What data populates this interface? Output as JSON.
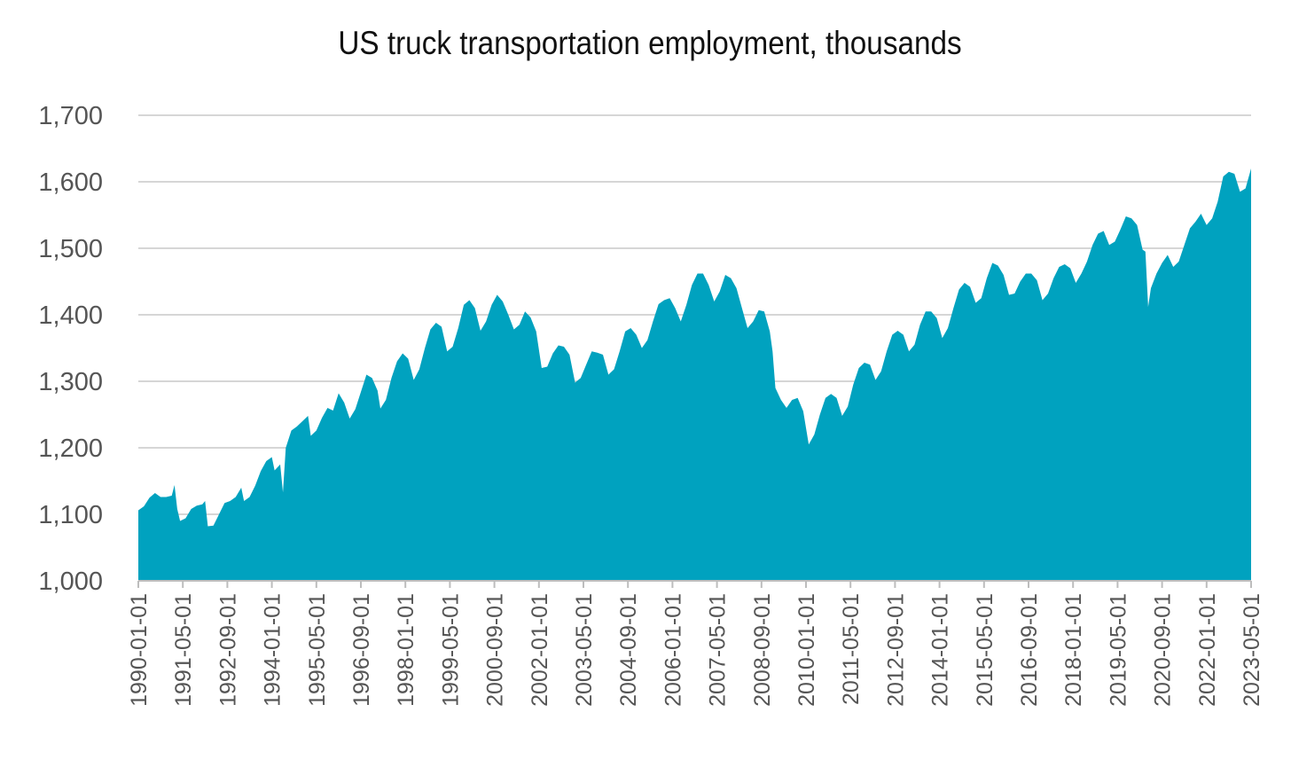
{
  "chart_data": {
    "type": "area",
    "title": "US truck transportation employment, thousands",
    "xlabel": "",
    "ylabel": "",
    "ylim": [
      1000,
      1700
    ],
    "yticks": [
      1000,
      1100,
      1200,
      1300,
      1400,
      1500,
      1600,
      1700
    ],
    "ytick_labels": [
      "1,000",
      "1,100",
      "1,200",
      "1,300",
      "1,400",
      "1,500",
      "1,600",
      "1,700"
    ],
    "xlim": [
      "1990-01-01",
      "2023-05-01"
    ],
    "xtick_labels": [
      "1990-01-01",
      "1991-05-01",
      "1992-09-01",
      "1994-01-01",
      "1995-05-01",
      "1996-09-01",
      "1998-01-01",
      "1999-05-01",
      "2000-09-01",
      "2002-01-01",
      "2003-05-01",
      "2004-09-01",
      "2006-01-01",
      "2007-05-01",
      "2008-09-01",
      "2010-01-01",
      "2011-05-01",
      "2012-09-01",
      "2014-01-01",
      "2015-05-01",
      "2016-09-01",
      "2018-01-01",
      "2019-05-01",
      "2020-09-01",
      "2022-01-01",
      "2023-05-01"
    ],
    "grid": true,
    "color": "#00a2bf",
    "series": [
      {
        "name": "US truck transportation employment",
        "points": [
          [
            "1990-01-01",
            1106
          ],
          [
            "1990-03-01",
            1112
          ],
          [
            "1990-05-01",
            1125
          ],
          [
            "1990-07-01",
            1132
          ],
          [
            "1990-09-01",
            1126
          ],
          [
            "1990-11-01",
            1126
          ],
          [
            "1991-01-01",
            1128
          ],
          [
            "1991-02-01",
            1144
          ],
          [
            "1991-03-01",
            1108
          ],
          [
            "1991-04-01",
            1090
          ],
          [
            "1991-06-01",
            1094
          ],
          [
            "1991-08-01",
            1108
          ],
          [
            "1991-10-01",
            1113
          ],
          [
            "1991-12-01",
            1115
          ],
          [
            "1992-01-01",
            1120
          ],
          [
            "1992-02-01",
            1082
          ],
          [
            "1992-04-01",
            1083
          ],
          [
            "1992-06-01",
            1100
          ],
          [
            "1992-08-01",
            1117
          ],
          [
            "1992-10-01",
            1120
          ],
          [
            "1992-12-01",
            1126
          ],
          [
            "1993-02-01",
            1140
          ],
          [
            "1993-03-01",
            1120
          ],
          [
            "1993-05-01",
            1126
          ],
          [
            "1993-07-01",
            1143
          ],
          [
            "1993-09-01",
            1165
          ],
          [
            "1993-11-01",
            1180
          ],
          [
            "1994-01-01",
            1186
          ],
          [
            "1994-02-01",
            1166
          ],
          [
            "1994-04-01",
            1175
          ],
          [
            "1994-05-01",
            1133
          ],
          [
            "1994-06-01",
            1200
          ],
          [
            "1994-08-01",
            1226
          ],
          [
            "1994-10-01",
            1232
          ],
          [
            "1994-12-01",
            1240
          ],
          [
            "1995-02-01",
            1248
          ],
          [
            "1995-03-01",
            1218
          ],
          [
            "1995-05-01",
            1226
          ],
          [
            "1995-07-01",
            1245
          ],
          [
            "1995-09-01",
            1260
          ],
          [
            "1995-11-01",
            1256
          ],
          [
            "1996-01-01",
            1282
          ],
          [
            "1996-03-01",
            1268
          ],
          [
            "1996-05-01",
            1244
          ],
          [
            "1996-07-01",
            1258
          ],
          [
            "1996-09-01",
            1284
          ],
          [
            "1996-11-01",
            1310
          ],
          [
            "1997-01-01",
            1305
          ],
          [
            "1997-03-01",
            1286
          ],
          [
            "1997-04-01",
            1259
          ],
          [
            "1997-06-01",
            1272
          ],
          [
            "1997-08-01",
            1305
          ],
          [
            "1997-10-01",
            1330
          ],
          [
            "1997-12-01",
            1342
          ],
          [
            "1998-02-01",
            1334
          ],
          [
            "1998-04-01",
            1302
          ],
          [
            "1998-06-01",
            1318
          ],
          [
            "1998-08-01",
            1350
          ],
          [
            "1998-10-01",
            1378
          ],
          [
            "1998-12-01",
            1388
          ],
          [
            "1999-02-01",
            1382
          ],
          [
            "1999-04-01",
            1345
          ],
          [
            "1999-06-01",
            1352
          ],
          [
            "1999-08-01",
            1380
          ],
          [
            "1999-10-01",
            1415
          ],
          [
            "1999-12-01",
            1422
          ],
          [
            "2000-02-01",
            1410
          ],
          [
            "2000-04-01",
            1376
          ],
          [
            "2000-06-01",
            1390
          ],
          [
            "2000-08-01",
            1415
          ],
          [
            "2000-10-01",
            1430
          ],
          [
            "2000-12-01",
            1420
          ],
          [
            "2001-02-01",
            1400
          ],
          [
            "2001-04-01",
            1378
          ],
          [
            "2001-06-01",
            1385
          ],
          [
            "2001-08-01",
            1405
          ],
          [
            "2001-10-01",
            1396
          ],
          [
            "2001-12-01",
            1375
          ],
          [
            "2002-02-01",
            1320
          ],
          [
            "2002-04-01",
            1322
          ],
          [
            "2002-06-01",
            1342
          ],
          [
            "2002-08-01",
            1354
          ],
          [
            "2002-10-01",
            1352
          ],
          [
            "2002-12-01",
            1340
          ],
          [
            "2003-02-01",
            1298
          ],
          [
            "2003-04-01",
            1305
          ],
          [
            "2003-06-01",
            1325
          ],
          [
            "2003-08-01",
            1345
          ],
          [
            "2003-10-01",
            1343
          ],
          [
            "2003-12-01",
            1340
          ],
          [
            "2004-02-01",
            1310
          ],
          [
            "2004-04-01",
            1318
          ],
          [
            "2004-06-01",
            1345
          ],
          [
            "2004-08-01",
            1375
          ],
          [
            "2004-10-01",
            1380
          ],
          [
            "2004-12-01",
            1370
          ],
          [
            "2005-02-01",
            1350
          ],
          [
            "2005-04-01",
            1362
          ],
          [
            "2005-06-01",
            1390
          ],
          [
            "2005-08-01",
            1416
          ],
          [
            "2005-10-01",
            1422
          ],
          [
            "2005-12-01",
            1425
          ],
          [
            "2006-02-01",
            1410
          ],
          [
            "2006-04-01",
            1390
          ],
          [
            "2006-06-01",
            1415
          ],
          [
            "2006-08-01",
            1445
          ],
          [
            "2006-10-01",
            1462
          ],
          [
            "2006-12-01",
            1462
          ],
          [
            "2007-02-01",
            1445
          ],
          [
            "2007-04-01",
            1420
          ],
          [
            "2007-06-01",
            1435
          ],
          [
            "2007-08-01",
            1460
          ],
          [
            "2007-10-01",
            1455
          ],
          [
            "2007-12-01",
            1440
          ],
          [
            "2008-02-01",
            1410
          ],
          [
            "2008-04-01",
            1380
          ],
          [
            "2008-06-01",
            1390
          ],
          [
            "2008-08-01",
            1407
          ],
          [
            "2008-10-01",
            1405
          ],
          [
            "2008-12-01",
            1375
          ],
          [
            "2009-01-01",
            1345
          ],
          [
            "2009-02-01",
            1290
          ],
          [
            "2009-04-01",
            1272
          ],
          [
            "2009-06-01",
            1260
          ],
          [
            "2009-08-01",
            1272
          ],
          [
            "2009-10-01",
            1275
          ],
          [
            "2009-12-01",
            1255
          ],
          [
            "2010-02-01",
            1205
          ],
          [
            "2010-04-01",
            1220
          ],
          [
            "2010-06-01",
            1250
          ],
          [
            "2010-08-01",
            1275
          ],
          [
            "2010-10-01",
            1281
          ],
          [
            "2010-12-01",
            1275
          ],
          [
            "2011-02-01",
            1248
          ],
          [
            "2011-04-01",
            1262
          ],
          [
            "2011-06-01",
            1295
          ],
          [
            "2011-08-01",
            1320
          ],
          [
            "2011-10-01",
            1328
          ],
          [
            "2011-12-01",
            1325
          ],
          [
            "2012-02-01",
            1302
          ],
          [
            "2012-04-01",
            1315
          ],
          [
            "2012-06-01",
            1345
          ],
          [
            "2012-08-01",
            1370
          ],
          [
            "2012-10-01",
            1376
          ],
          [
            "2012-12-01",
            1370
          ],
          [
            "2013-02-01",
            1345
          ],
          [
            "2013-04-01",
            1355
          ],
          [
            "2013-06-01",
            1385
          ],
          [
            "2013-08-01",
            1405
          ],
          [
            "2013-10-01",
            1405
          ],
          [
            "2013-12-01",
            1395
          ],
          [
            "2014-02-01",
            1365
          ],
          [
            "2014-04-01",
            1380
          ],
          [
            "2014-06-01",
            1410
          ],
          [
            "2014-08-01",
            1438
          ],
          [
            "2014-10-01",
            1448
          ],
          [
            "2014-12-01",
            1442
          ],
          [
            "2015-02-01",
            1418
          ],
          [
            "2015-04-01",
            1425
          ],
          [
            "2015-06-01",
            1455
          ],
          [
            "2015-08-01",
            1478
          ],
          [
            "2015-10-01",
            1474
          ],
          [
            "2015-12-01",
            1460
          ],
          [
            "2016-02-01",
            1430
          ],
          [
            "2016-04-01",
            1432
          ],
          [
            "2016-06-01",
            1450
          ],
          [
            "2016-08-01",
            1462
          ],
          [
            "2016-10-01",
            1462
          ],
          [
            "2016-12-01",
            1452
          ],
          [
            "2017-02-01",
            1422
          ],
          [
            "2017-04-01",
            1432
          ],
          [
            "2017-06-01",
            1455
          ],
          [
            "2017-08-01",
            1472
          ],
          [
            "2017-10-01",
            1476
          ],
          [
            "2017-12-01",
            1470
          ],
          [
            "2018-02-01",
            1448
          ],
          [
            "2018-04-01",
            1462
          ],
          [
            "2018-06-01",
            1480
          ],
          [
            "2018-08-01",
            1505
          ],
          [
            "2018-10-01",
            1522
          ],
          [
            "2018-12-01",
            1526
          ],
          [
            "2019-02-01",
            1505
          ],
          [
            "2019-04-01",
            1510
          ],
          [
            "2019-06-01",
            1528
          ],
          [
            "2019-08-01",
            1548
          ],
          [
            "2019-10-01",
            1545
          ],
          [
            "2019-12-01",
            1535
          ],
          [
            "2020-02-01",
            1498
          ],
          [
            "2020-03-01",
            1495
          ],
          [
            "2020-04-01",
            1412
          ],
          [
            "2020-05-01",
            1440
          ],
          [
            "2020-07-01",
            1462
          ],
          [
            "2020-09-01",
            1478
          ],
          [
            "2020-11-01",
            1490
          ],
          [
            "2021-01-01",
            1472
          ],
          [
            "2021-03-01",
            1480
          ],
          [
            "2021-05-01",
            1505
          ],
          [
            "2021-07-01",
            1530
          ],
          [
            "2021-09-01",
            1540
          ],
          [
            "2021-11-01",
            1552
          ],
          [
            "2022-01-01",
            1535
          ],
          [
            "2022-03-01",
            1545
          ],
          [
            "2022-05-01",
            1570
          ],
          [
            "2022-07-01",
            1608
          ],
          [
            "2022-09-01",
            1615
          ],
          [
            "2022-11-01",
            1612
          ],
          [
            "2023-01-01",
            1585
          ],
          [
            "2023-03-01",
            1590
          ],
          [
            "2023-05-01",
            1620
          ]
        ]
      }
    ]
  }
}
